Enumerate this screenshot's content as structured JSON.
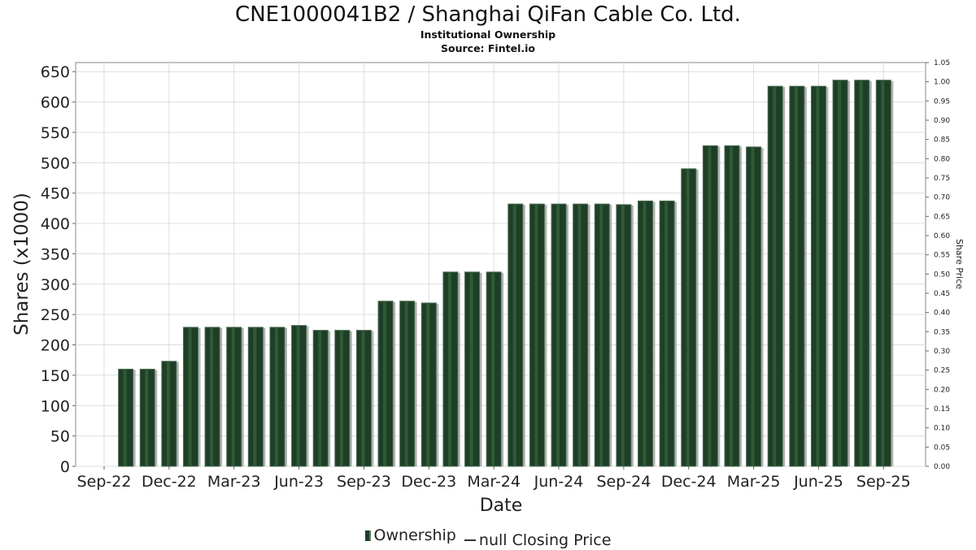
{
  "chart_data": {
    "type": "bar",
    "title": "CNE1000041B2 / Shanghai QiFan Cable Co. Ltd.",
    "subtitle": "Institutional Ownership",
    "source": "Source: Fintel.io",
    "xlabel": "Date",
    "ylabel": "Shares (x1000)",
    "y2label": "Share Price",
    "ylim": [
      0,
      665
    ],
    "y2lim": [
      0,
      1.05
    ],
    "yticks": [
      0,
      50,
      100,
      150,
      200,
      250,
      300,
      350,
      400,
      450,
      500,
      550,
      600,
      650
    ],
    "y2ticks": [
      "0.00",
      "0.05",
      "0.10",
      "0.15",
      "0.20",
      "0.25",
      "0.30",
      "0.35",
      "0.40",
      "0.45",
      "0.50",
      "0.55",
      "0.60",
      "0.65",
      "0.70",
      "0.75",
      "0.80",
      "0.85",
      "0.90",
      "0.95",
      "1.00",
      "1.05"
    ],
    "xticks": [
      "Sep-22",
      "Dec-22",
      "Mar-23",
      "Jun-23",
      "Sep-23",
      "Dec-23",
      "Mar-24",
      "Jun-24",
      "Sep-24",
      "Dec-24",
      "Mar-25",
      "Jun-25",
      "Sep-25"
    ],
    "grid": true,
    "legend": [
      "Ownership",
      "null Closing Price"
    ],
    "legend_position": "bottom",
    "series": [
      {
        "name": "Ownership",
        "color": "#1e3e26",
        "values": [
          160,
          160,
          173,
          229,
          229,
          229,
          229,
          229,
          232,
          224,
          224,
          224,
          272,
          272,
          269,
          320,
          320,
          320,
          432,
          432,
          432,
          432,
          432,
          431,
          437,
          437,
          490,
          528,
          528,
          526,
          626,
          626,
          626,
          636,
          636,
          636
        ]
      }
    ]
  }
}
